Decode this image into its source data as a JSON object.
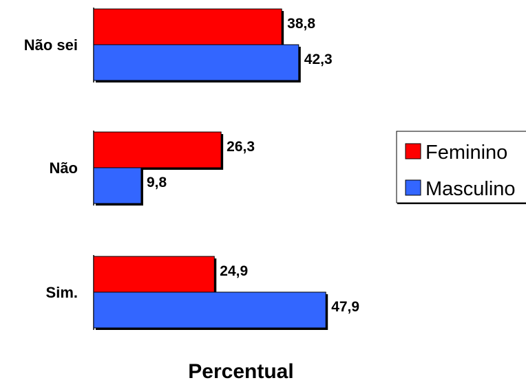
{
  "chart_data": {
    "type": "bar",
    "orientation": "horizontal",
    "categories": [
      "Não sei",
      "Não",
      "Sim."
    ],
    "series": [
      {
        "name": "Feminino",
        "color": "#ff0000",
        "values": [
          38.8,
          26.3,
          24.9
        ]
      },
      {
        "name": "Masculino",
        "color": "#3366ff",
        "values": [
          42.3,
          9.8,
          47.9
        ]
      }
    ],
    "value_labels": {
      "Feminino": [
        "38,8",
        "26,3",
        "24,9"
      ],
      "Masculino": [
        "42,3",
        "9,8",
        "47,9"
      ]
    },
    "title": "",
    "xlabel": "Percentual",
    "ylabel": "",
    "xlim": [
      0,
      50
    ],
    "grid": false,
    "legend_position": "right"
  }
}
